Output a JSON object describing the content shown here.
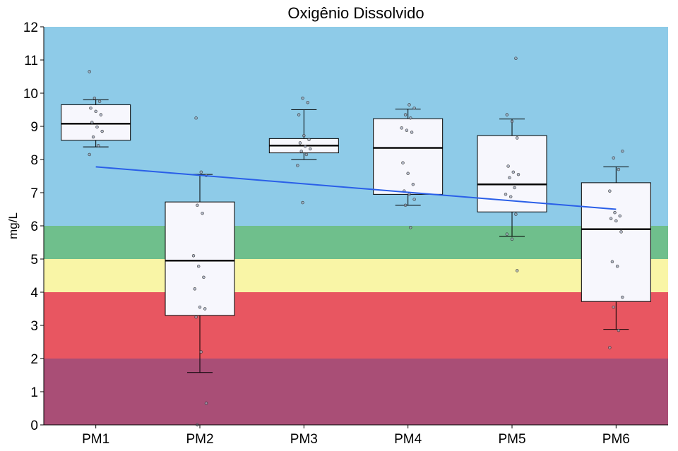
{
  "chart_data": {
    "type": "box",
    "title": "Oxigênio Dissolvido",
    "xlabel": "",
    "ylabel": "mg/L",
    "ylim": [
      0,
      12
    ],
    "yticks": [
      "0",
      "1",
      "2",
      "3",
      "4",
      "5",
      "6",
      "7",
      "8",
      "9",
      "10",
      "11",
      "12"
    ],
    "categories": [
      "PM1",
      "PM2",
      "PM3",
      "PM4",
      "PM5",
      "PM6"
    ],
    "background_bands": [
      {
        "from": 0,
        "to": 2,
        "color": "#a94e76"
      },
      {
        "from": 2,
        "to": 4,
        "color": "#e85661"
      },
      {
        "from": 4,
        "to": 5,
        "color": "#f9f5a6"
      },
      {
        "from": 5,
        "to": 6,
        "color": "#6fbf8c"
      },
      {
        "from": 6,
        "to": 12,
        "color": "#8ecbe8"
      }
    ],
    "boxes": [
      {
        "category": "PM1",
        "whisker_low": 8.38,
        "q1": 8.58,
        "median": 9.08,
        "q3": 9.65,
        "whisker_high": 9.8,
        "points": [
          10.65,
          9.85,
          9.75,
          9.55,
          9.45,
          9.35,
          9.12,
          8.98,
          8.85,
          8.68,
          8.42,
          8.15
        ]
      },
      {
        "category": "PM2",
        "whisker_low": 1.58,
        "q1": 3.3,
        "median": 4.95,
        "q3": 6.72,
        "whisker_high": 7.55,
        "points": [
          9.25,
          7.62,
          7.52,
          6.62,
          6.38,
          5.1,
          4.78,
          4.45,
          4.1,
          3.55,
          3.5,
          3.25,
          2.2,
          0.65,
          0.0
        ]
      },
      {
        "category": "PM3",
        "whisker_low": 8.0,
        "q1": 8.2,
        "median": 8.42,
        "q3": 8.63,
        "whisker_high": 9.5,
        "points": [
          9.85,
          9.72,
          9.35,
          8.72,
          8.6,
          8.5,
          8.4,
          8.32,
          8.25,
          8.15,
          7.82,
          6.7
        ]
      },
      {
        "category": "PM4",
        "whisker_low": 6.62,
        "q1": 6.95,
        "median": 8.35,
        "q3": 9.23,
        "whisker_high": 9.52,
        "points": [
          9.65,
          9.55,
          9.35,
          9.25,
          8.95,
          8.88,
          8.82,
          7.9,
          7.58,
          7.25,
          7.05,
          6.95,
          6.8,
          6.62,
          5.95
        ]
      },
      {
        "category": "PM5",
        "whisker_low": 5.68,
        "q1": 6.42,
        "median": 7.25,
        "q3": 8.72,
        "whisker_high": 9.22,
        "points": [
          11.05,
          9.35,
          9.15,
          8.65,
          7.8,
          7.62,
          7.55,
          7.45,
          7.15,
          6.95,
          6.88,
          6.35,
          5.75,
          5.6,
          4.65
        ]
      },
      {
        "category": "PM6",
        "whisker_low": 2.88,
        "q1": 3.72,
        "median": 5.9,
        "q3": 7.3,
        "whisker_high": 7.78,
        "points": [
          8.25,
          8.05,
          7.7,
          7.05,
          6.4,
          6.3,
          6.22,
          6.15,
          5.82,
          4.92,
          4.78,
          3.85,
          3.55,
          2.85,
          2.33
        ]
      }
    ],
    "trend_line": {
      "color": "#2a5fe8",
      "start": [
        1,
        7.78
      ],
      "end": [
        6,
        6.5
      ]
    }
  }
}
